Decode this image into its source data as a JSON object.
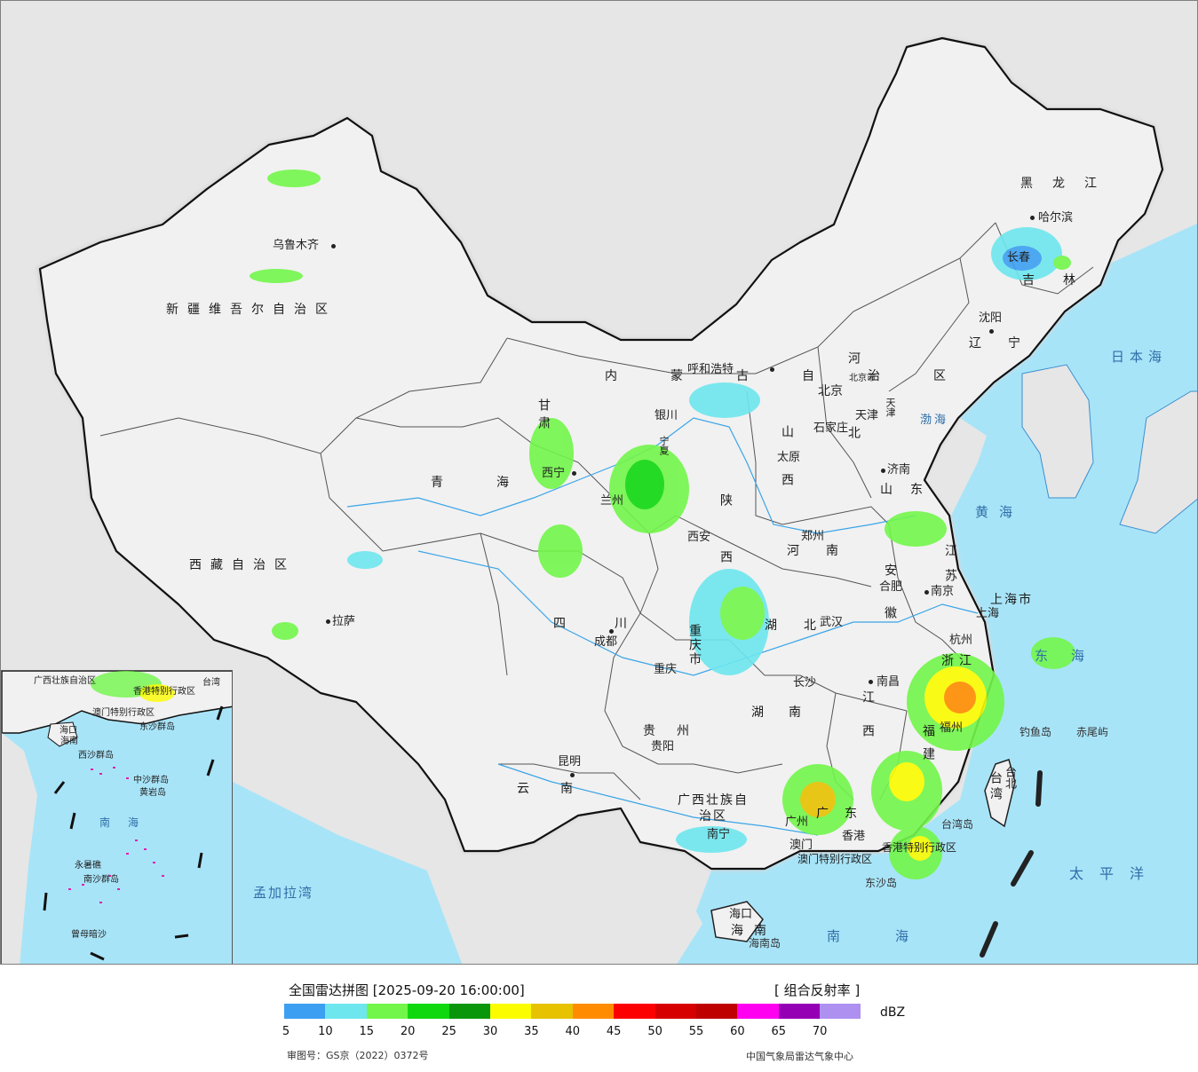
{
  "legend": {
    "title": "全国雷达拼图 [2025-09-20 16:00:00]",
    "product": "[ 组合反射率 ]",
    "unit": "dBZ",
    "ticks": [
      "5",
      "10",
      "15",
      "20",
      "25",
      "30",
      "35",
      "40",
      "45",
      "50",
      "55",
      "60",
      "65",
      "70"
    ],
    "colors": [
      "#3d9ff2",
      "#6ee6ee",
      "#72f64a",
      "#0fd80f",
      "#0a960a",
      "#fcfc00",
      "#e6c200",
      "#ff8c00",
      "#fc0000",
      "#d60000",
      "#be0000",
      "#ff00f0",
      "#9600b4",
      "#ad90f0"
    ],
    "review_no": "审图号：GS京（2022）0372号",
    "org": "中国气象局雷达气象中心"
  },
  "map": {
    "colors": {
      "land": "#f1f1f1",
      "sea": "#a8e4f8",
      "border": "#111111",
      "outside": "#e6e6e6"
    },
    "provinces": [
      "新疆维吾尔自治区",
      "西藏自治区",
      "青海",
      "甘肃",
      "内蒙古自治区",
      "黑龙江",
      "吉林",
      "辽宁",
      "河北",
      "山西",
      "山东",
      "陕西",
      "河南",
      "江苏",
      "安徽",
      "四川",
      "重庆市",
      "湖北",
      "浙江",
      "上海市",
      "江西",
      "湖南",
      "福建",
      "贵州",
      "云南",
      "广西壮族自治区",
      "广东",
      "海南",
      "台湾",
      "宁夏",
      "北京市",
      "天津"
    ],
    "cities": [
      "乌鲁木齐",
      "哈尔滨",
      "长春",
      "沈阳",
      "呼和浩特",
      "北京",
      "天津",
      "石家庄",
      "太原",
      "济南",
      "银川",
      "西宁",
      "兰州",
      "西安",
      "郑州",
      "合肥",
      "南京",
      "上海",
      "杭州",
      "武汉",
      "成都",
      "重庆",
      "拉萨",
      "长沙",
      "南昌",
      "福州",
      "贵阳",
      "昆明",
      "南宁",
      "广州",
      "香港",
      "澳门",
      "台北",
      "海口"
    ],
    "region_labels": [
      "香港特别行政区",
      "澳门特别行政区"
    ],
    "seas": [
      "日本海",
      "渤海",
      "黄海",
      "东海",
      "太平洋",
      "南海",
      "孟加拉湾"
    ],
    "islands": [
      "钓鱼岛",
      "赤尾屿",
      "台湾岛",
      "东沙岛",
      "海南岛"
    ],
    "inset": {
      "labels": [
        "广西壮族自治区",
        "香港特别行政区",
        "澳门特别行政区",
        "台湾",
        "海口",
        "海南",
        "西沙群岛",
        "东沙群岛",
        "中沙群岛",
        "黄岩岛",
        "南海",
        "永暑礁",
        "南沙群岛",
        "曾母暗沙"
      ]
    }
  }
}
